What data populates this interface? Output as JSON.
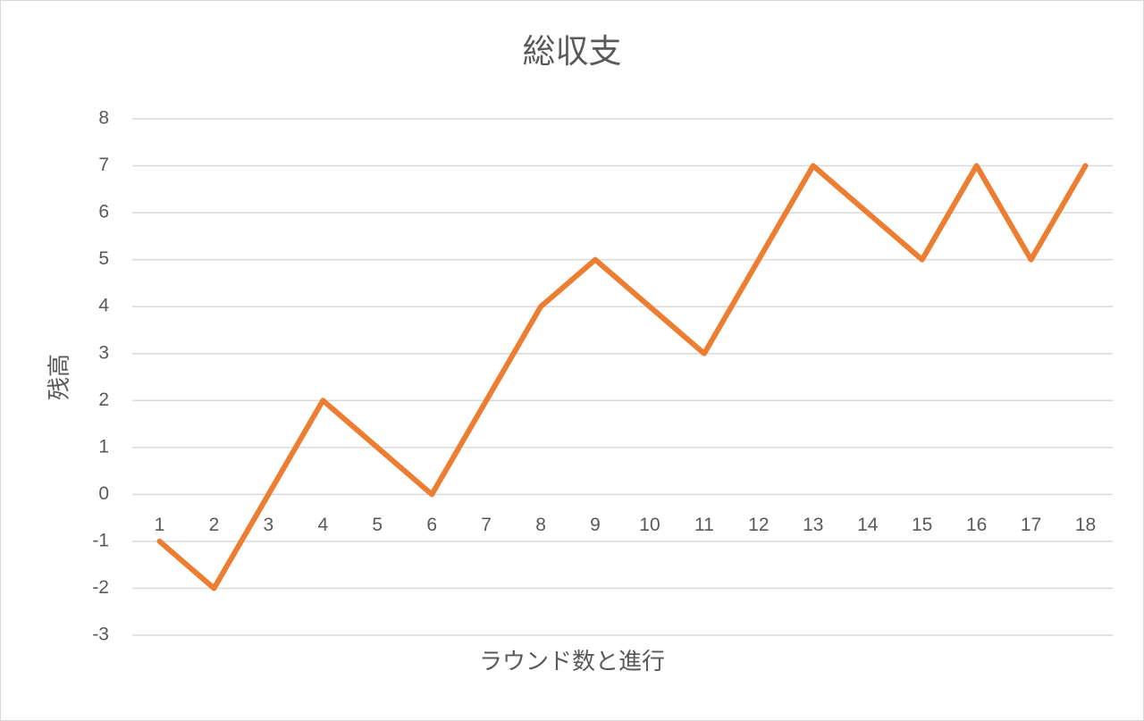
{
  "chart_data": {
    "type": "line",
    "title": "総収支",
    "x_label": "ラウンド数と進行",
    "y_label": "残高",
    "categories": [
      "1",
      "2",
      "3",
      "4",
      "5",
      "6",
      "7",
      "8",
      "9",
      "10",
      "11",
      "12",
      "13",
      "14",
      "15",
      "16",
      "17",
      "18"
    ],
    "series": [
      {
        "name": "残高",
        "color": "#ed7d31",
        "values": [
          -1,
          -2,
          0,
          2,
          1,
          0,
          2,
          4,
          5,
          4,
          3,
          5,
          7,
          6,
          5,
          7,
          5,
          7
        ]
      }
    ],
    "ylim": [
      -3,
      8
    ],
    "yticks": [
      -3,
      -2,
      -1,
      0,
      1,
      2,
      3,
      4,
      5,
      6,
      7,
      8
    ],
    "grid": true
  }
}
